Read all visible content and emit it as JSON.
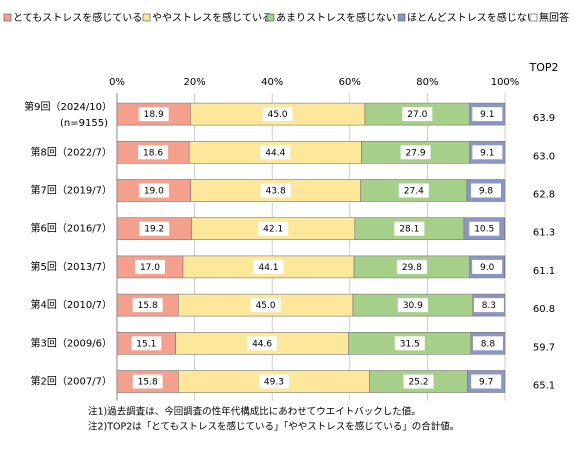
{
  "chart_data": {
    "type": "stacked-bar-horizontal",
    "categories": [
      "第9回（2024/10）",
      "第8回（2022/7）",
      "第7回（2019/7）",
      "第6回（2016/7）",
      "第5回（2013/7）",
      "第4回（2010/7）",
      "第3回（2009/6）",
      "第2回（2007/7）"
    ],
    "category_note": "(n=9155)",
    "series": [
      {
        "name": "とてもストレスを感じている",
        "color": "#f4a08c",
        "values": [
          18.9,
          18.6,
          19.0,
          19.2,
          17.0,
          15.8,
          15.1,
          15.8
        ],
        "value_labels": [
          "18.9",
          "18.6",
          "19.0",
          "19.2",
          "17.0",
          "15.8",
          "15.1",
          "15.8"
        ]
      },
      {
        "name": "ややストレスを感じている",
        "color": "#fde79a",
        "values": [
          45.0,
          44.4,
          43.8,
          42.1,
          44.1,
          45.0,
          44.6,
          49.3
        ],
        "value_labels": [
          "45.0",
          "44.4",
          "43.8",
          "42.1",
          "44.1",
          "45.0",
          "44.6",
          "49.3"
        ]
      },
      {
        "name": "あまりストレスを感じない",
        "color": "#a6d08a",
        "values": [
          27.0,
          27.9,
          27.4,
          28.1,
          29.8,
          30.9,
          31.5,
          25.2
        ],
        "value_labels": [
          "27.0",
          "27.9",
          "27.4",
          "28.1",
          "29.8",
          "30.9",
          "31.5",
          "25.2"
        ]
      },
      {
        "name": "ほとんどストレスを感じない",
        "color": "#8c96c6",
        "values": [
          9.1,
          9.1,
          9.8,
          10.5,
          9.0,
          8.3,
          8.8,
          9.7
        ],
        "value_labels": [
          "9.1",
          "9.1",
          "9.8",
          "10.5",
          "9.0",
          "8.3",
          "8.8",
          "9.7"
        ]
      },
      {
        "name": "無回答",
        "color": "#ffffff",
        "values": [
          0,
          0,
          0,
          0.1,
          0.1,
          0,
          0,
          0
        ]
      }
    ],
    "xlim": [
      0,
      100
    ],
    "xticks": [
      {
        "value": 0,
        "label": "0%"
      },
      {
        "value": 20,
        "label": "20%"
      },
      {
        "value": 40,
        "label": "40%"
      },
      {
        "value": 60,
        "label": "60%"
      },
      {
        "value": 80,
        "label": "80%"
      },
      {
        "value": 100,
        "label": "100%"
      }
    ],
    "grid": true,
    "top2": {
      "label": "TOP2",
      "values": [
        63.9,
        63.0,
        62.8,
        61.3,
        61.1,
        60.8,
        59.7,
        65.1
      ],
      "value_labels": [
        "63.9",
        "63.0",
        "62.8",
        "61.3",
        "61.1",
        "60.8",
        "59.7",
        "65.1"
      ]
    },
    "notes": [
      "注1)過去調査は、今回調査の性年代構成比にあわせてウエイトバックした値。",
      "注2)TOP2は「とてもストレスを感じている」「ややストレスを感じている」の合計値。"
    ]
  }
}
